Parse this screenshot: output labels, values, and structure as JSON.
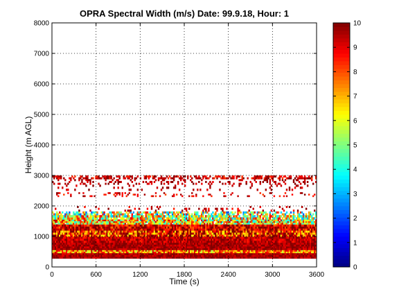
{
  "chart_data": {
    "type": "heatmap",
    "title": "OPRA Spectral Width (m/s)  Date: 99.9.18, Hour: 1",
    "xlabel": "Time (s)",
    "ylabel": "Height (m AGL)",
    "xlim": [
      0,
      3600
    ],
    "ylim": [
      0,
      8000
    ],
    "x_ticks": [
      0,
      600,
      1200,
      1800,
      2400,
      3000,
      3600
    ],
    "x_tick_labels": [
      "0",
      "600",
      "1200",
      "1800",
      "2400",
      "3000",
      "3600"
    ],
    "y_ticks": [
      0,
      1000,
      2000,
      3000,
      4000,
      5000,
      6000,
      7000,
      8000
    ],
    "y_tick_labels": [
      "0",
      "1000",
      "2000",
      "3000",
      "4000",
      "5000",
      "6000",
      "7000",
      "8000"
    ],
    "grid": true,
    "colormap": "jet",
    "color_range": [
      0,
      10
    ],
    "colorbar_ticks": [
      0,
      1,
      2,
      3,
      4,
      5,
      6,
      7,
      8,
      9,
      10
    ],
    "colorbar_tick_labels": [
      "0",
      "1",
      "2",
      "3",
      "4",
      "5",
      "6",
      "7",
      "8",
      "9",
      "10"
    ],
    "bands": [
      {
        "y": [
          280,
          460
        ],
        "value": 9.6,
        "coverage": 1.0,
        "variation": 0.6
      },
      {
        "y": [
          460,
          560
        ],
        "value": 7.5,
        "coverage": 1.0,
        "variation": 2.0
      },
      {
        "y": [
          560,
          800
        ],
        "value": 9.6,
        "coverage": 1.0,
        "variation": 0.7
      },
      {
        "y": [
          800,
          1000
        ],
        "value": 9.4,
        "coverage": 1.0,
        "variation": 1.0
      },
      {
        "y": [
          1000,
          1200
        ],
        "value": 8.5,
        "coverage": 1.0,
        "variation": 2.5
      },
      {
        "y": [
          1200,
          1400
        ],
        "value": 9.2,
        "coverage": 1.0,
        "variation": 1.6
      },
      {
        "y": [
          1400,
          1560
        ],
        "value": 6.5,
        "coverage": 0.95,
        "variation": 3.0
      },
      {
        "y": [
          1560,
          1700
        ],
        "value": 6.0,
        "coverage": 0.9,
        "variation": 3.0
      },
      {
        "y": [
          1700,
          1820
        ],
        "value": 5.5,
        "coverage": 0.6,
        "variation": 3.5
      },
      {
        "y": [
          1820,
          2000
        ],
        "value": 9.2,
        "coverage": 0.12,
        "variation": 0.8
      },
      {
        "y": [
          2300,
          2450
        ],
        "value": 9.0,
        "coverage": 0.15,
        "variation": 1.0
      },
      {
        "y": [
          2500,
          2700
        ],
        "value": 9.4,
        "coverage": 0.1,
        "variation": 0.6
      },
      {
        "y": [
          2700,
          2880
        ],
        "value": 9.5,
        "coverage": 0.25,
        "variation": 0.6
      },
      {
        "y": [
          2880,
          3000
        ],
        "value": 9.3,
        "coverage": 0.55,
        "variation": 1.2
      }
    ]
  }
}
